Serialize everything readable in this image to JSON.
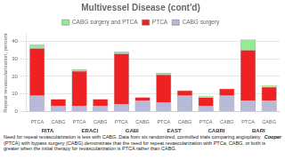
{
  "chart_data": {
    "type": "bar",
    "title": "Multivessel Disease (cont'd)",
    "y_label": "Repeat revascularization, percent",
    "categories": [
      "PTCA",
      "CABG",
      "PTCA",
      "CABG",
      "PTCA",
      "CABG",
      "PTCA",
      "CABG",
      "PTCA",
      "CABG",
      "PTCA",
      "CABG"
    ],
    "series": [
      {
        "name": "CABG surgery",
        "color": "#b8b8d8",
        "values": [
          9,
          3,
          3,
          3,
          4,
          6,
          5,
          9,
          3,
          9,
          6,
          6
        ]
      },
      {
        "name": "PTCA",
        "color": "#ee2222",
        "values": [
          27,
          4,
          20,
          4,
          29,
          2,
          16,
          3,
          5,
          4,
          29,
          8
        ]
      },
      {
        "name": "CABG surgery and PTCA",
        "color": "#90ee90",
        "values": [
          2,
          0,
          1,
          0,
          1,
          0,
          1,
          0,
          1,
          0,
          6,
          1
        ]
      }
    ],
    "annotations": [
      "RITA",
      "ERACI",
      "GABI",
      "EAST",
      "CABRI",
      "BARI",
      "Need for repeat revascularization is less with CABG. Data from six randomized, controlled trials comparing angioplasty (PTCA) with bypass surgery (CABG) demonstrate that the need for repeat revascularization with PTCa, CABG, or both is greater when the initial therapy for revascularization is PTCA rather than CABG.",
      "Cooper"
    ],
    "stacked": true,
    "ylim": [
      0,
      44
    ],
    "yticks": [
      0,
      10,
      20,
      30,
      40
    ],
    "grid": true,
    "legend": "top"
  }
}
